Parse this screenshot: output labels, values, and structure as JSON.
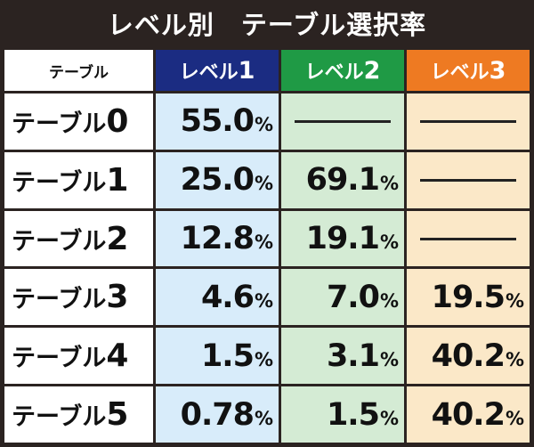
{
  "title": "レベル別　テーブル選択率",
  "header": {
    "corner": "テーブル",
    "levels": [
      {
        "prefix": "レベル",
        "num": "1",
        "color": "#1b2c82"
      },
      {
        "prefix": "レベル",
        "num": "2",
        "color": "#1f9a45"
      },
      {
        "prefix": "レベル",
        "num": "3",
        "color": "#ee7a22"
      }
    ]
  },
  "rows": [
    {
      "prefix": "テーブル",
      "num": "0",
      "values": [
        {
          "v": "55.0",
          "u": "%"
        },
        null,
        null
      ]
    },
    {
      "prefix": "テーブル",
      "num": "1",
      "values": [
        {
          "v": "25.0",
          "u": "%"
        },
        {
          "v": "69.1",
          "u": "%"
        },
        null
      ]
    },
    {
      "prefix": "テーブル",
      "num": "2",
      "values": [
        {
          "v": "12.8",
          "u": "%"
        },
        {
          "v": "19.1",
          "u": "%"
        },
        null
      ]
    },
    {
      "prefix": "テーブル",
      "num": "3",
      "values": [
        {
          "v": "4.6",
          "u": "%"
        },
        {
          "v": "7.0",
          "u": "%"
        },
        {
          "v": "19.5",
          "u": "%"
        }
      ]
    },
    {
      "prefix": "テーブル",
      "num": "4",
      "values": [
        {
          "v": "1.5",
          "u": "%"
        },
        {
          "v": "3.1",
          "u": "%"
        },
        {
          "v": "40.2",
          "u": "%"
        }
      ]
    },
    {
      "prefix": "テーブル",
      "num": "5",
      "values": [
        {
          "v": "0.78",
          "u": "%"
        },
        {
          "v": "1.5",
          "u": "%"
        },
        {
          "v": "40.2",
          "u": "%"
        }
      ]
    }
  ]
}
